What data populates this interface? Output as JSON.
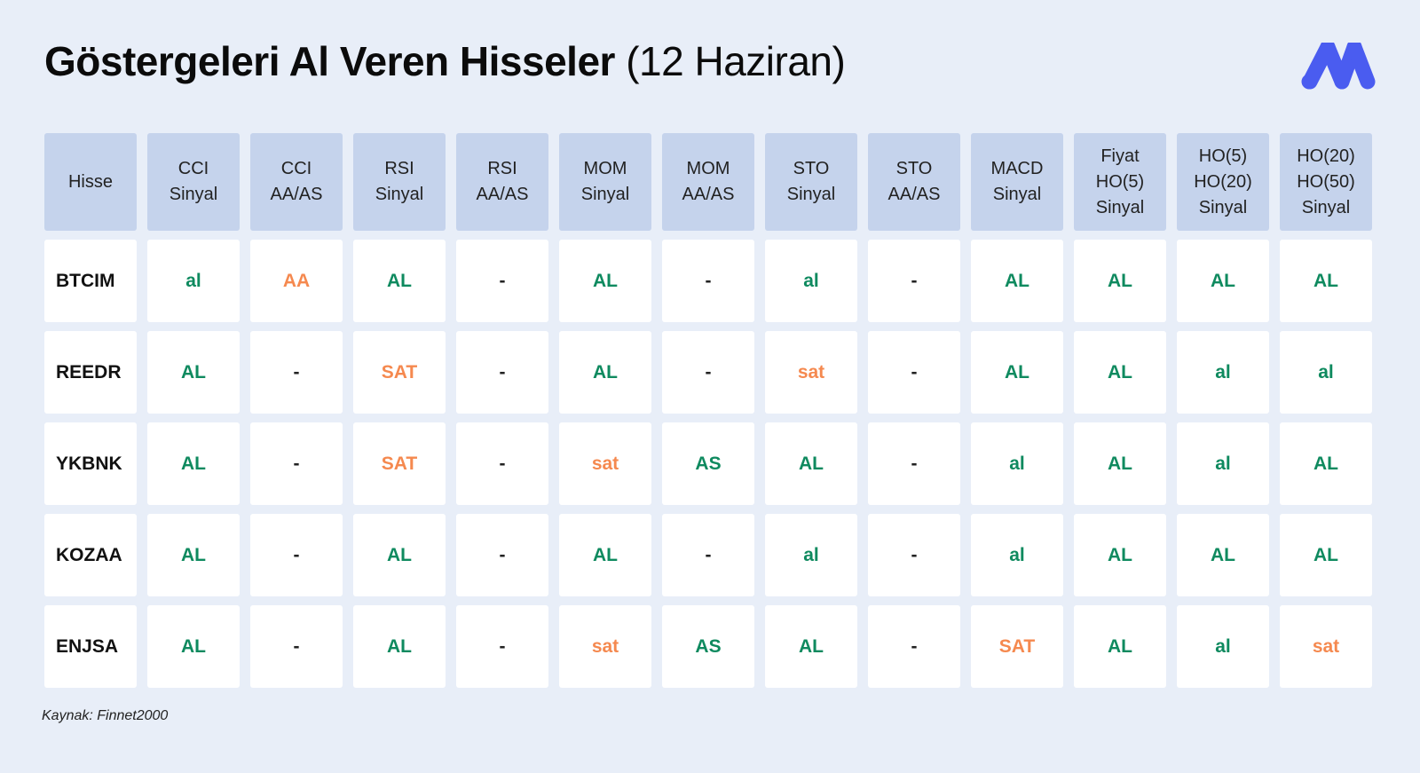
{
  "title": {
    "bold": "Göstergeleri Al Veren Hisseler",
    "light": "(12 Haziran)"
  },
  "logo": {
    "icon": "brand-logo-icon",
    "color": "#4a5cf0"
  },
  "colors": {
    "buy": "#0f8a5f",
    "sell": "#f5894f",
    "header_bg": "#c5d3ec",
    "page_bg": "#e8eef8"
  },
  "table": {
    "headers": [
      "Hisse",
      "CCI\nSinyal",
      "CCI\nAA/AS",
      "RSI\nSinyal",
      "RSI\nAA/AS",
      "MOM\nSinyal",
      "MOM\nAA/AS",
      "STO\nSinyal",
      "STO\nAA/AS",
      "MACD\nSinyal",
      "Fiyat\nHO(5)\nSinyal",
      "HO(5)\nHO(20)\nSinyal",
      "HO(20)\nHO(50)\nSinyal"
    ],
    "rows": [
      [
        "BTCIM",
        "al",
        "AA",
        "AL",
        "-",
        "AL",
        "-",
        "al",
        "-",
        "AL",
        "AL",
        "AL",
        "AL"
      ],
      [
        "REEDR",
        "AL",
        "-",
        "SAT",
        "-",
        "AL",
        "-",
        "sat",
        "-",
        "AL",
        "AL",
        "al",
        "al"
      ],
      [
        "YKBNK",
        "AL",
        "-",
        "SAT",
        "-",
        "sat",
        "AS",
        "AL",
        "-",
        "al",
        "AL",
        "al",
        "AL"
      ],
      [
        "KOZAA",
        "AL",
        "-",
        "AL",
        "-",
        "AL",
        "-",
        "al",
        "-",
        "al",
        "AL",
        "AL",
        "AL"
      ],
      [
        "ENJSA",
        "AL",
        "-",
        "AL",
        "-",
        "sat",
        "AS",
        "AL",
        "-",
        "SAT",
        "AL",
        "al",
        "sat"
      ]
    ]
  },
  "source": "Kaynak: Finnet2000"
}
